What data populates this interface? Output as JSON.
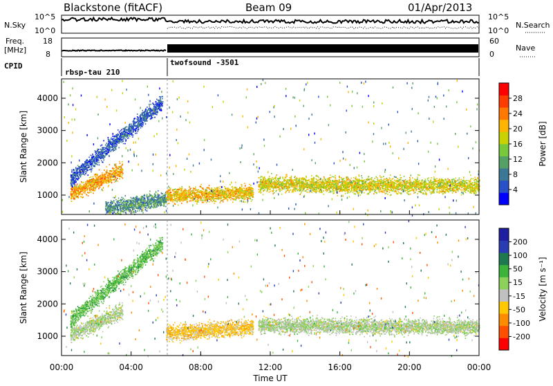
{
  "header": {
    "station": "Blackstone (fitACF)",
    "beam": "Beam 09",
    "date": "01/Apr/2013"
  },
  "strip_labels": {
    "nsky": "N.Sky",
    "nsearch": "N.Search",
    "freq_line1": "Freq.",
    "freq_line2": "[MHz]",
    "nave": "Nave",
    "cpid": "CPID",
    "noise_ticks_left": [
      "10^5",
      "10^0"
    ],
    "noise_ticks_right": [
      "10^5",
      "10^0"
    ],
    "freq_ticks": [
      "18",
      "8"
    ],
    "nave_ticks": [
      "60",
      "0"
    ]
  },
  "cpid_segments": [
    {
      "label": "rbsp-tau 210",
      "start_hour": 0,
      "end_hour": 6
    },
    {
      "label": "twofsound -3501",
      "start_hour": 6,
      "end_hour": 24
    }
  ],
  "x_axis": {
    "label": "Time UT",
    "ticks": [
      "00:00",
      "04:00",
      "08:00",
      "12:00",
      "16:00",
      "20:00",
      "00:00"
    ]
  },
  "chart_data": [
    {
      "type": "heatmap",
      "name": "power",
      "ylabel": "Slant Range [km]",
      "y_ticks": [
        "1000",
        "2000",
        "3000",
        "4000"
      ],
      "ylim": [
        400,
        4600
      ],
      "xlim_hours": [
        0,
        24
      ],
      "colorbar": {
        "label": "Power [dB]",
        "tick_labels": [
          "4",
          "8",
          "12",
          "16",
          "20",
          "24",
          "28"
        ],
        "range": [
          0,
          32
        ],
        "colors": [
          "#0000ff",
          "#2850c8",
          "#3c7896",
          "#55a064",
          "#78c83c",
          "#c8d200",
          "#ffb400",
          "#ff7800",
          "#ff3c00",
          "#ff0000"
        ]
      },
      "bands": [
        {
          "start_hour": 0.5,
          "end_hour": 3.5,
          "center_km_start": 1050,
          "center_km_end": 1800,
          "value_db": 22
        },
        {
          "start_hour": 0.5,
          "end_hour": 5.8,
          "center_km_start": 1500,
          "center_km_end": 3900,
          "value_db": 6
        },
        {
          "start_hour": 2.5,
          "end_hour": 6,
          "center_km_start": 600,
          "center_km_end": 900,
          "value_db": 10
        },
        {
          "start_hour": 6,
          "end_hour": 11,
          "center_km_start": 1000,
          "center_km_end": 1100,
          "value_db": 20
        },
        {
          "start_hour": 11.3,
          "end_hour": 24,
          "center_km_start": 1350,
          "center_km_end": 1300,
          "value_db": 18
        }
      ]
    },
    {
      "type": "heatmap",
      "name": "velocity",
      "ylabel": "Slant Range [km]",
      "y_ticks": [
        "1000",
        "2000",
        "3000",
        "4000"
      ],
      "ylim": [
        400,
        4600
      ],
      "xlim_hours": [
        0,
        24
      ],
      "colorbar": {
        "label": "Velocity [m s⁻¹]",
        "tick_labels": [
          "200",
          "100",
          "50",
          "15",
          "-15",
          "-50",
          "-100",
          "-200"
        ],
        "colors": [
          "#1e1ea0",
          "#2a3cb4",
          "#1e7850",
          "#3cb43c",
          "#8cd25a",
          "#c0c0c0",
          "#ffc800",
          "#ff8c00",
          "#ff5000",
          "#ff0000"
        ]
      },
      "bands": [
        {
          "start_hour": 0.5,
          "end_hour": 3.5,
          "center_km_start": 1050,
          "center_km_end": 1800,
          "value_ms": 0
        },
        {
          "start_hour": 0.5,
          "end_hour": 5.8,
          "center_km_start": 1500,
          "center_km_end": 3900,
          "value_ms": 60
        },
        {
          "start_hour": 6,
          "end_hour": 11,
          "center_km_start": 1100,
          "center_km_end": 1300,
          "value_ms": -70
        },
        {
          "start_hour": 11.3,
          "end_hour": 24,
          "center_km_start": 1350,
          "center_km_end": 1300,
          "value_ms": 0
        }
      ]
    }
  ]
}
